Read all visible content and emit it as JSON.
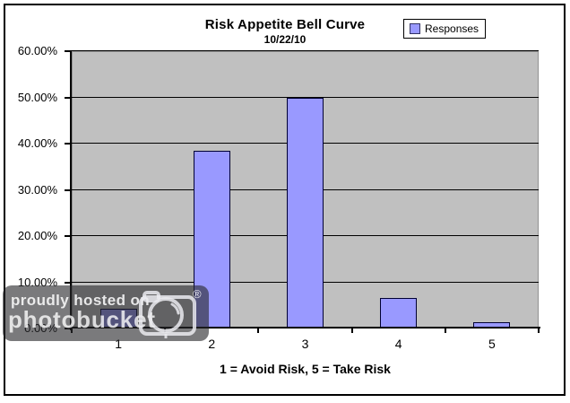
{
  "chart_data": {
    "type": "bar",
    "title": "Risk Appetite Bell Curve",
    "subtitle": "10/22/10",
    "categories": [
      "1",
      "2",
      "3",
      "4",
      "5"
    ],
    "series": [
      {
        "name": "Responses",
        "values": [
          4.2,
          38.5,
          50.0,
          6.6,
          1.4
        ]
      }
    ],
    "xlabel": "1 = Avoid Risk, 5 = Take Risk",
    "ylabel": "",
    "ylim": [
      0,
      60
    ],
    "ytick_labels": [
      "0.00%",
      "10.00%",
      "20.00%",
      "30.00%",
      "40.00%",
      "50.00%",
      "60.00%"
    ],
    "grid": true,
    "legend_position": "top-right",
    "colors": {
      "bar_fill": "#9999FF",
      "bar_border": "#000033",
      "plot_bg": "#C0C0C0",
      "gridline": "#000000",
      "axis": "#000000",
      "text": "#000000",
      "chart_border": "#000000",
      "background": "#FFFFFF"
    }
  },
  "watermark": {
    "line1": "proudly hosted on",
    "line2": "photobucket",
    "registered": "®"
  }
}
